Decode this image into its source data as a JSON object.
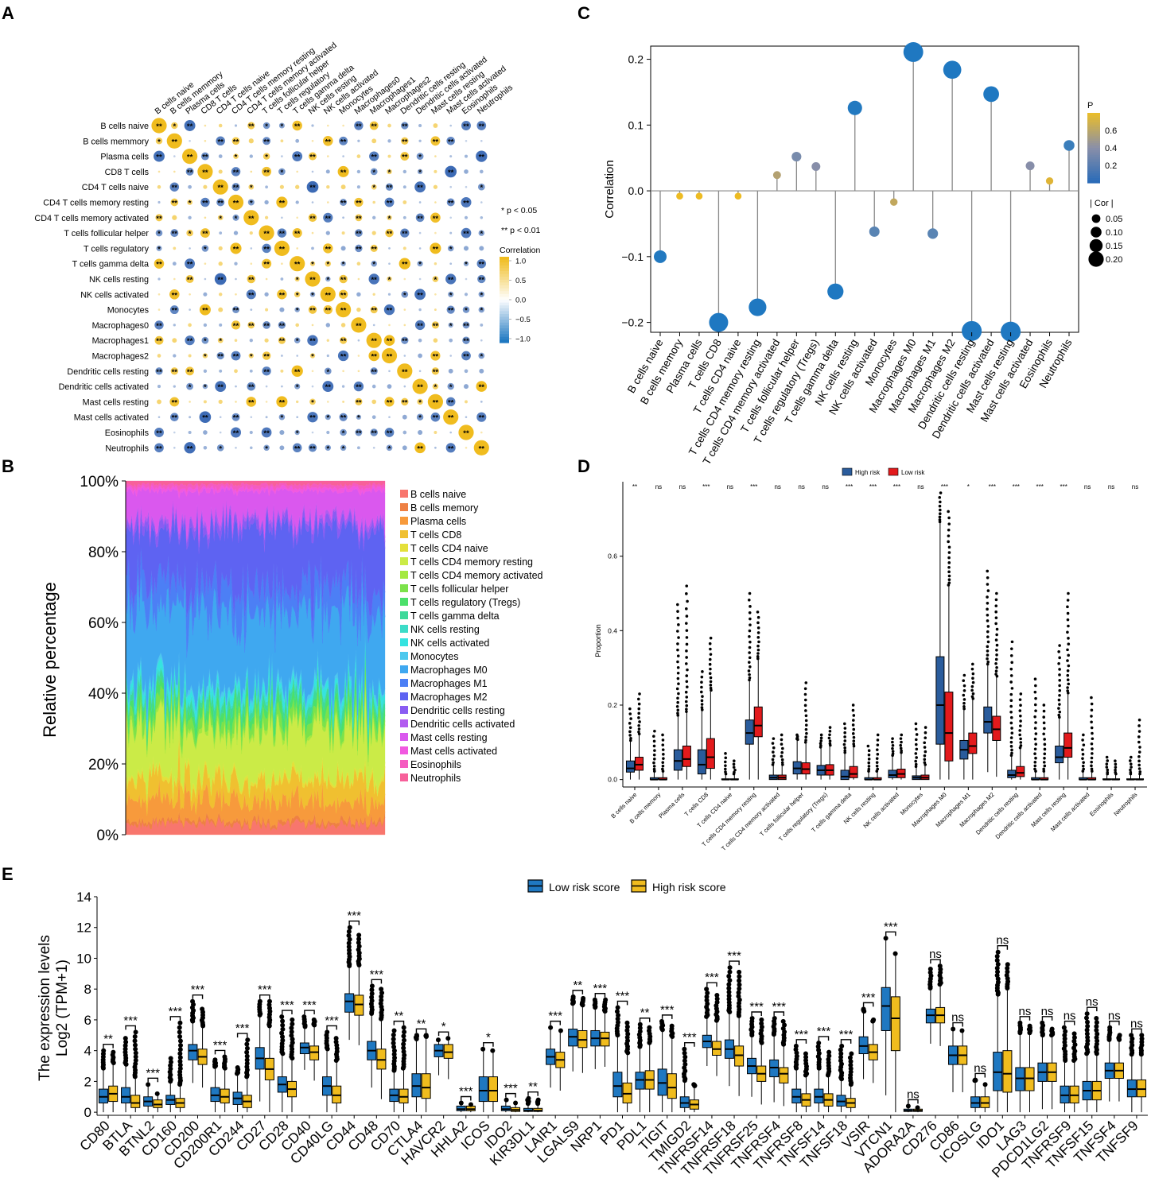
{
  "figure": {
    "panel_labels": [
      "A",
      "B",
      "C",
      "D",
      "E"
    ]
  },
  "colors": {
    "gold": "#F0BC1E",
    "blue": "#1F78C1",
    "light_blue": "#3D6BB5",
    "red": "#E31A1C",
    "navy": "#2A5C9C",
    "grid": "#E6E6E6"
  },
  "chart_data": [
    {
      "panel": "A",
      "type": "heatmap",
      "subtype": "correlation-matrix",
      "labels": [
        "B cells naive",
        "B cells memmory",
        "Plasma cells",
        "CD8 T cells",
        "CD4 T cells naive",
        "CD4 T cells memory resting",
        "CD4 T cells memory activated",
        "T cells follicular helper",
        "T cells regulatory",
        "T cells gamma delta",
        "NK cells resting",
        "NK cells activated",
        "Monocytes",
        "Macrophages0",
        "Macrophages1",
        "Macrophages2",
        "Dendritic cells resting",
        "Dendritic cells activated",
        "Mast cells resting",
        "Mast cells activated",
        "Eosinophils",
        "Neutrophils"
      ],
      "legend_notes": [
        "* p < 0.05",
        "** p < 0.01"
      ],
      "colorbar_title": "Correlation",
      "colorbar_ticks": [
        "1.0",
        "0.5",
        "0.0",
        "−0.5",
        "−1.0"
      ],
      "value_range": [
        -1,
        1
      ],
      "sig_double": "**",
      "sig_single": "*"
    },
    {
      "panel": "B",
      "type": "area",
      "subtype": "stacked-100-percent",
      "ylabel": "Relative percentage",
      "yticks": [
        "0%",
        "20%",
        "40%",
        "60%",
        "80%",
        "100%"
      ],
      "categories": [
        "B cells naive",
        "B cells memory",
        "Plasma cells",
        "T cells CD8",
        "T cells CD4 naive",
        "T cells CD4 memory resting",
        "T cells CD4 memory activated",
        "T cells follicular helper",
        "T cells regulatory (Tregs)",
        "T cells gamma delta",
        "NK cells resting",
        "NK cells activated",
        "Monocytes",
        "Macrophages M0",
        "Macrophages M1",
        "Macrophages M2",
        "Dendritic cells resting",
        "Dendritic cells activated",
        "Mast cells resting",
        "Mast cells activated",
        "Eosinophils",
        "Neutrophils"
      ],
      "series_colors": [
        "#F8766D",
        "#EE8043",
        "#F79A3C",
        "#F0C030",
        "#E4E03A",
        "#CBEB47",
        "#A4E940",
        "#7CE24A",
        "#4BE06A",
        "#3ED99A",
        "#3CDCC8",
        "#35E3E0",
        "#4CC8EE",
        "#3FA8F0",
        "#4C7FF5",
        "#5E63F2",
        "#8A5CF2",
        "#B25CF0",
        "#DA58EE",
        "#F159E0",
        "#F55BC0",
        "#F7609A"
      ],
      "approx_mean_shares": [
        0.03,
        0.01,
        0.06,
        0.06,
        0.01,
        0.14,
        0.01,
        0.03,
        0.03,
        0.02,
        0.01,
        0.02,
        0.01,
        0.22,
        0.08,
        0.16,
        0.02,
        0.01,
        0.08,
        0.01,
        0.01,
        0.01
      ]
    },
    {
      "panel": "C",
      "type": "scatter",
      "subtype": "lollipop",
      "ylabel": "Correlation",
      "ylim": [
        -0.215,
        0.22
      ],
      "yticks": [
        -0.2,
        -0.1,
        0.0,
        0.1,
        0.2
      ],
      "ytick_labels": [
        "−0.2",
        "−0.1",
        "0.0",
        "0.1",
        "0.2"
      ],
      "categories": [
        "B cells naive",
        "B cells memory",
        "Plasma cells",
        "T cells CD8",
        "T cells CD4 naive",
        "T cells CD4 memory resting",
        "T cells CD4 memory activated",
        "T cells follicular helper",
        "T cells regulatory (Tregs)",
        "T cells gamma delta",
        "NK cells resting",
        "NK cells activated",
        "Monocytes",
        "Macrophages M0",
        "Macrophages M1",
        "Macrophages M2",
        "Dendritic cells resting",
        "Dendritic cells activated",
        "Mast cells resting",
        "Mast cells activated",
        "Eosinophils",
        "Neutrophils"
      ],
      "values": [
        -0.1,
        -0.008,
        -0.008,
        -0.2,
        -0.008,
        -0.177,
        0.024,
        0.052,
        0.037,
        -0.153,
        0.126,
        -0.062,
        -0.017,
        0.211,
        -0.065,
        0.184,
        -0.213,
        0.147,
        -0.214,
        0.038,
        0.015,
        0.069
      ],
      "p_values": [
        0.02,
        0.7,
        0.7,
        0.01,
        0.7,
        0.01,
        0.5,
        0.3,
        0.35,
        0.01,
        0.02,
        0.2,
        0.55,
        0.01,
        0.2,
        0.01,
        0.01,
        0.01,
        0.01,
        0.35,
        0.65,
        0.1
      ],
      "color_legend": {
        "title": "P",
        "ticks": [
          "0.6",
          "0.4",
          "0.2"
        ]
      },
      "size_legend": {
        "title": "| Cor |",
        "ticks": [
          "0.05",
          "0.10",
          "0.15",
          "0.20"
        ]
      }
    },
    {
      "panel": "D",
      "type": "bar",
      "subtype": "grouped-boxplot",
      "ylabel": "Proportion",
      "ylim": [
        -0.02,
        0.8
      ],
      "yticks": [
        "0.0",
        "0.2",
        "0.4",
        "0.6"
      ],
      "legend": [
        "High risk",
        "Low risk"
      ],
      "categories": [
        "B cells naive",
        "B cells memory",
        "Plasma cells",
        "T cells CD8",
        "T cells CD4 naive",
        "T cells CD4 memory resting",
        "T cells CD4 memory activated",
        "T cells follicular helper",
        "T cells regulatory (Tregs)",
        "T cells gamma delta",
        "NK cells resting",
        "NK cells activated",
        "Monocytes",
        "Macrophages M0",
        "Macrophages M1",
        "Macrophages M2",
        "Dendritic cells resting",
        "Dendritic cells activated",
        "Mast cells resting",
        "Mast cells activated",
        "Eosinophils",
        "Neutrophils"
      ],
      "significance": [
        "**",
        "ns",
        "ns",
        "***",
        "ns",
        "***",
        "ns",
        "ns",
        "ns",
        "***",
        "***",
        "***",
        "ns",
        "***",
        "*",
        "***",
        "***",
        "***",
        "***",
        "ns",
        "ns",
        "ns"
      ],
      "series": [
        {
          "name": "High risk",
          "medians": [
            0.03,
            0.0,
            0.05,
            0.04,
            0.0,
            0.125,
            0.005,
            0.03,
            0.025,
            0.008,
            0.0,
            0.012,
            0.005,
            0.2,
            0.08,
            0.155,
            0.012,
            0.0,
            0.06,
            0.0,
            0.0,
            0.0
          ],
          "q1": [
            0.02,
            0.0,
            0.025,
            0.015,
            0.0,
            0.095,
            0.0,
            0.015,
            0.012,
            0.0,
            0.0,
            0.005,
            0.0,
            0.095,
            0.055,
            0.125,
            0.005,
            0.0,
            0.045,
            0.0,
            0.0,
            0.0
          ],
          "q3": [
            0.05,
            0.005,
            0.08,
            0.08,
            0.002,
            0.16,
            0.012,
            0.048,
            0.038,
            0.025,
            0.005,
            0.025,
            0.01,
            0.33,
            0.105,
            0.195,
            0.025,
            0.005,
            0.09,
            0.005,
            0.002,
            0.002
          ],
          "max_outlier": [
            0.19,
            0.13,
            0.47,
            0.29,
            0.07,
            0.5,
            0.11,
            0.12,
            0.12,
            0.15,
            0.09,
            0.11,
            0.15,
            0.77,
            0.28,
            0.56,
            0.37,
            0.27,
            0.36,
            0.12,
            0.06,
            0.06
          ]
        },
        {
          "name": "Low risk",
          "medians": [
            0.04,
            0.0,
            0.055,
            0.06,
            0.0,
            0.145,
            0.005,
            0.028,
            0.025,
            0.015,
            0.0,
            0.015,
            0.005,
            0.125,
            0.09,
            0.135,
            0.018,
            0.0,
            0.085,
            0.0,
            0.0,
            0.0
          ],
          "q1": [
            0.025,
            0.0,
            0.035,
            0.03,
            0.0,
            0.115,
            0.0,
            0.015,
            0.012,
            0.005,
            0.0,
            0.005,
            0.0,
            0.05,
            0.07,
            0.105,
            0.008,
            0.0,
            0.06,
            0.0,
            0.0,
            0.0
          ],
          "q3": [
            0.06,
            0.005,
            0.09,
            0.11,
            0.002,
            0.195,
            0.012,
            0.045,
            0.04,
            0.035,
            0.005,
            0.028,
            0.012,
            0.235,
            0.125,
            0.17,
            0.035,
            0.005,
            0.125,
            0.005,
            0.002,
            0.002
          ],
          "max_outlier": [
            0.23,
            0.12,
            0.52,
            0.38,
            0.05,
            0.45,
            0.12,
            0.26,
            0.14,
            0.2,
            0.12,
            0.12,
            0.14,
            0.72,
            0.31,
            0.5,
            0.23,
            0.2,
            0.5,
            0.22,
            0.05,
            0.16
          ]
        }
      ]
    },
    {
      "panel": "E",
      "type": "bar",
      "subtype": "grouped-boxplot",
      "ylabel": [
        "The expression levels",
        "Log2 (TPM+1)"
      ],
      "ylim": [
        -0.2,
        14
      ],
      "yticks": [
        0,
        2,
        4,
        6,
        8,
        10,
        12,
        14
      ],
      "legend": [
        "Low risk score",
        "High risk score"
      ],
      "categories": [
        "CD80",
        "BTLA",
        "BTNL2",
        "CD160",
        "CD200",
        "CD200R1",
        "CD244",
        "CD27",
        "CD28",
        "CD40",
        "CD40LG",
        "CD44",
        "CD48",
        "CD70",
        "CTLA4",
        "HAVCR2",
        "HHLA2",
        "ICOS",
        "IDO2",
        "KIR3DL1",
        "LAIR1",
        "LGALS9",
        "NRP1",
        "PD1",
        "PDL1",
        "TIGIT",
        "TMIGD2",
        "TNFRSF14",
        "TNFRSF18",
        "TNFRSF25",
        "TNFRSF4",
        "TNFRSF8",
        "TNFSF14",
        "TNFSF18",
        "VSIR",
        "VTCN1",
        "ADORA2A",
        "CD276",
        "CD86",
        "ICOSLG",
        "IDO1",
        "LAG3",
        "PDCD1LG2",
        "TNFRSF9",
        "TNFSF15",
        "TNFSF4",
        "TNFSF9"
      ],
      "significance": [
        "**",
        "***",
        "***",
        "***",
        "***",
        "***",
        "***",
        "***",
        "***",
        "***",
        "***",
        "***",
        "***",
        "**",
        "**",
        "*",
        "***",
        "*",
        "***",
        "**",
        "***",
        "**",
        "***",
        "***",
        "**",
        "***",
        "***",
        "***",
        "***",
        "***",
        "***",
        "***",
        "***",
        "***",
        "***",
        "***",
        "ns",
        "ns",
        "ns",
        "ns",
        "ns",
        "ns",
        "ns",
        "ns",
        "ns",
        "ns",
        "ns"
      ],
      "series": [
        {
          "name": "Low risk score",
          "medians": [
            1.0,
            1.0,
            0.7,
            0.8,
            4.0,
            1.1,
            0.9,
            3.5,
            1.8,
            4.2,
            1.7,
            7.2,
            4.0,
            1.1,
            1.7,
            4.0,
            0.2,
            1.4,
            0.2,
            0.1,
            3.6,
            4.9,
            4.8,
            1.7,
            2.1,
            1.9,
            0.6,
            4.6,
            4.1,
            3.0,
            2.9,
            1.0,
            1.0,
            0.7,
            4.3,
            6.9,
            0.1,
            6.3,
            3.7,
            0.6,
            2.6,
            2.2,
            2.6,
            1.1,
            1.4,
            2.7,
            1.5
          ],
          "q1": [
            0.6,
            0.6,
            0.4,
            0.5,
            3.4,
            0.7,
            0.5,
            2.8,
            1.3,
            3.8,
            1.1,
            6.5,
            3.4,
            0.7,
            1.0,
            3.6,
            0.1,
            0.7,
            0.1,
            0.05,
            3.1,
            4.3,
            4.3,
            1.0,
            1.5,
            1.1,
            0.3,
            4.2,
            3.5,
            2.5,
            2.3,
            0.6,
            0.6,
            0.4,
            3.8,
            5.3,
            0.05,
            5.8,
            3.1,
            0.3,
            1.4,
            1.4,
            2.0,
            0.6,
            0.8,
            2.2,
            1.0
          ],
          "q3": [
            1.5,
            1.6,
            1.0,
            1.1,
            4.4,
            1.6,
            1.3,
            4.2,
            2.3,
            4.5,
            2.3,
            7.7,
            4.6,
            1.5,
            2.5,
            4.4,
            0.4,
            2.3,
            0.4,
            0.25,
            4.1,
            5.4,
            5.3,
            2.6,
            2.6,
            2.8,
            1.0,
            5.0,
            4.7,
            3.5,
            3.4,
            1.5,
            1.5,
            1.1,
            4.9,
            8.1,
            0.2,
            6.7,
            4.3,
            1.0,
            3.9,
            2.9,
            3.2,
            1.7,
            2.0,
            3.2,
            2.1
          ],
          "max_outlier": [
            4.0,
            4.8,
            1.8,
            3.5,
            7.2,
            3.4,
            2.9,
            7.2,
            6.2,
            6.2,
            5.2,
            12.0,
            8.2,
            5.3,
            5.0,
            4.7,
            0.6,
            4.1,
            0.8,
            0.9,
            5.5,
            7.5,
            7.3,
            6.8,
            5.7,
            5.9,
            4.1,
            8.0,
            9.4,
            6.1,
            6.1,
            4.3,
            4.5,
            4.3,
            6.7,
            11.3,
            0.4,
            9.3,
            5.4,
            2.1,
            10.4,
            5.8,
            5.8,
            5.5,
            6.4,
            5.5,
            5.0
          ]
        },
        {
          "name": "High risk score",
          "medians": [
            1.2,
            0.6,
            0.5,
            0.6,
            3.6,
            1.0,
            0.7,
            2.8,
            1.5,
            3.9,
            1.1,
            7.0,
            3.4,
            1.0,
            1.6,
            3.9,
            0.2,
            1.4,
            0.15,
            0.1,
            3.4,
            4.7,
            4.8,
            1.2,
            2.1,
            1.6,
            0.5,
            4.1,
            3.7,
            2.5,
            2.5,
            0.8,
            0.8,
            0.6,
            3.9,
            6.1,
            0.1,
            6.3,
            3.7,
            0.6,
            2.5,
            2.2,
            2.6,
            1.1,
            1.4,
            2.7,
            1.5
          ],
          "q1": [
            0.7,
            0.3,
            0.3,
            0.3,
            3.1,
            0.6,
            0.3,
            2.1,
            1.0,
            3.4,
            0.6,
            6.3,
            2.8,
            0.6,
            0.9,
            3.5,
            0.1,
            0.7,
            0.05,
            0.05,
            2.9,
            4.2,
            4.3,
            0.6,
            1.5,
            0.9,
            0.2,
            3.7,
            3.0,
            2.0,
            1.9,
            0.4,
            0.4,
            0.3,
            3.4,
            4.0,
            0.05,
            5.8,
            3.1,
            0.3,
            1.3,
            1.4,
            2.0,
            0.6,
            0.8,
            2.2,
            1.0
          ],
          "q3": [
            1.7,
            1.1,
            0.8,
            0.9,
            4.1,
            1.5,
            1.1,
            3.5,
            2.0,
            4.3,
            1.7,
            7.6,
            4.1,
            1.5,
            2.5,
            4.4,
            0.4,
            2.3,
            0.3,
            0.25,
            3.9,
            5.3,
            5.2,
            1.9,
            2.7,
            2.5,
            0.8,
            4.6,
            4.3,
            3.0,
            2.9,
            1.2,
            1.2,
            0.9,
            4.4,
            7.5,
            0.2,
            6.8,
            4.3,
            1.0,
            4.0,
            2.9,
            3.2,
            1.7,
            2.0,
            3.2,
            2.1
          ],
          "max_outlier": [
            3.9,
            5.2,
            1.2,
            5.8,
            6.7,
            3.6,
            4.7,
            7.2,
            6.0,
            6.0,
            4.8,
            11.5,
            8.0,
            5.5,
            5.0,
            4.8,
            0.5,
            4.0,
            0.6,
            0.8,
            5.3,
            7.4,
            7.3,
            5.8,
            5.5,
            5.6,
            1.8,
            7.6,
            9.1,
            6.0,
            5.9,
            3.8,
            3.9,
            3.8,
            6.0,
            10.3,
            0.3,
            9.5,
            5.3,
            1.8,
            9.6,
            5.6,
            5.4,
            5.1,
            6.1,
            5.0,
            5.0
          ]
        }
      ]
    }
  ]
}
